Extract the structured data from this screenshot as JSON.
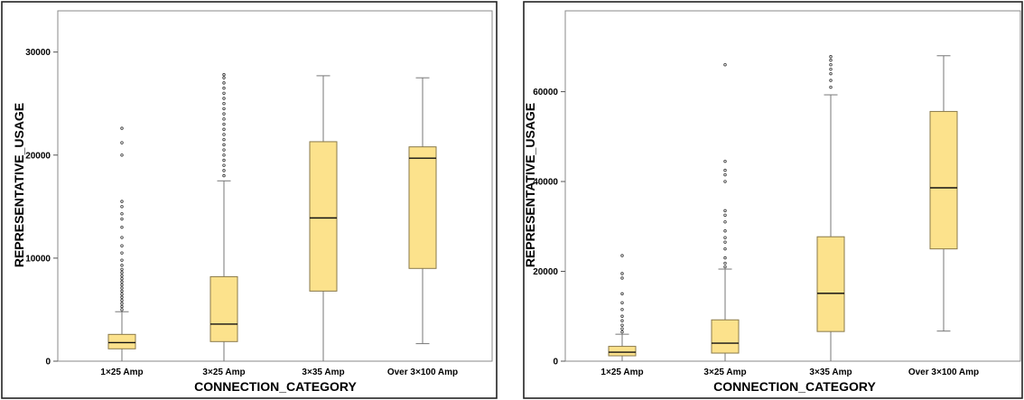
{
  "chart_data": [
    {
      "type": "boxplot",
      "xlabel": "CONNECTION_CATEGORY",
      "ylabel": "REPRESENTATIVE_USAGE",
      "ylim": [
        0,
        34000
      ],
      "yticks": [
        0,
        10000,
        20000,
        30000
      ],
      "ytick_labels": [
        "0",
        "10000",
        "20000",
        "30000"
      ],
      "categories": [
        "1×25 Amp",
        "3×25 Amp",
        "3×35 Amp",
        "Over 3×100 Amp"
      ],
      "box_color": "#fce28c",
      "boxes": [
        {
          "category": "1×25 Amp",
          "whisker_low": 0,
          "q1": 1200,
          "median": 1800,
          "q3": 2600,
          "whisker_high": 4800,
          "outliers": [
            5000,
            5300,
            5600,
            5900,
            6200,
            6500,
            6800,
            7100,
            7400,
            7700,
            8000,
            8300,
            8600,
            8900,
            9300,
            9800,
            10500,
            11200,
            12000,
            13000,
            13800,
            14300,
            15000,
            15500,
            20000,
            21200,
            22600
          ]
        },
        {
          "category": "3×25 Amp",
          "whisker_low": 0,
          "q1": 1900,
          "median": 3600,
          "q3": 8200,
          "whisker_high": 17500,
          "outliers": [
            18000,
            18500,
            19000,
            19500,
            20000,
            20500,
            21000,
            21500,
            22000,
            22500,
            23000,
            23500,
            24000,
            24500,
            25000,
            25500,
            26000,
            26500,
            27000,
            27500,
            27800
          ]
        },
        {
          "category": "3×35 Amp",
          "whisker_low": 0,
          "q1": 6800,
          "median": 13900,
          "q3": 21300,
          "whisker_high": 27700,
          "outliers": []
        },
        {
          "category": "Over 3×100 Amp",
          "whisker_low": 1700,
          "q1": 9000,
          "median": 19700,
          "q3": 20800,
          "whisker_high": 27500,
          "outliers": []
        }
      ]
    },
    {
      "type": "boxplot",
      "xlabel": "CONNECTION_CATEGORY",
      "ylabel": "REPRESENTATIVE_USAGE",
      "ylim": [
        0,
        78000
      ],
      "yticks": [
        0,
        20000,
        40000,
        60000
      ],
      "ytick_labels": [
        "0",
        "20000",
        "40000",
        "60000"
      ],
      "categories": [
        "1×25 Amp",
        "3×25 Amp",
        "3×35 Amp",
        "Over 3×100 Amp"
      ],
      "box_color": "#fce28c",
      "boxes": [
        {
          "category": "1×25 Amp",
          "whisker_low": 0,
          "q1": 1200,
          "median": 2000,
          "q3": 3300,
          "whisker_high": 6000,
          "outliers": [
            6500,
            7200,
            8000,
            9000,
            10000,
            11500,
            13000,
            15000,
            18500,
            19500,
            23500
          ]
        },
        {
          "category": "3×25 Amp",
          "whisker_low": 0,
          "q1": 1800,
          "median": 4000,
          "q3": 9200,
          "whisker_high": 20500,
          "outliers": [
            21000,
            21800,
            23000,
            25000,
            26500,
            27500,
            29000,
            31000,
            32500,
            33500,
            40000,
            41500,
            42500,
            44500,
            66000
          ]
        },
        {
          "category": "3×35 Amp",
          "whisker_low": 0,
          "q1": 6600,
          "median": 15100,
          "q3": 27700,
          "whisker_high": 59300,
          "outliers": [
            61000,
            62500,
            64000,
            65000,
            66000,
            67000,
            67800
          ]
        },
        {
          "category": "Over 3×100 Amp",
          "whisker_low": 6700,
          "q1": 25000,
          "median": 38600,
          "q3": 55600,
          "whisker_high": 68000,
          "outliers": []
        }
      ]
    }
  ]
}
